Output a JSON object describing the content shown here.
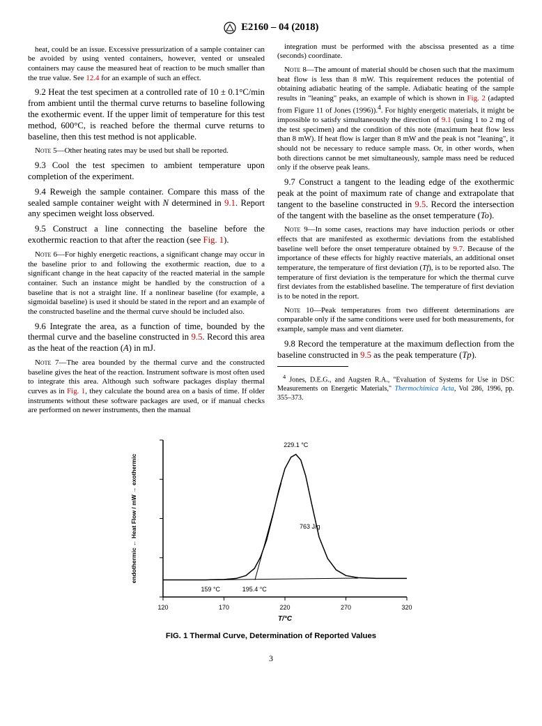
{
  "header": {
    "standard_id": "E2160 – 04 (2018)"
  },
  "col1": {
    "p1": "heat, could be an issue. Excessive pressurization of a sample container can be avoided by using vented containers, however, vented or unsealed containers may cause the measured heat of reaction to be much smaller than the true value. See ",
    "p1_ref": "12.4",
    "p1_end": " for an example of such an effect.",
    "p2_label": "9.2",
    "p2": " Heat the test specimen at a controlled rate of 10 ± 0.1°C/min from ambient until the thermal curve returns to baseline following the exothermic event. If the upper limit of temperature for this test method, 600°C, is reached before the thermal curve returns to baseline, then this test method is not applicable.",
    "note5_label": "Note 5—",
    "note5": "Other heating rates may be used but shall be reported.",
    "p3_label": "9.3",
    "p3": " Cool the test specimen to ambient temperature upon completion of the experiment.",
    "p4_label": "9.4",
    "p4a": " Reweigh the sample container. Compare this mass of the sealed sample container weight with ",
    "p4_N": "N",
    "p4b": " determined in ",
    "p4_ref": "9.1",
    "p4c": ". Report any specimen weight loss observed.",
    "p5_label": "9.5",
    "p5a": " Construct a line connecting the baseline before the exothermic reaction to that after the reaction (see ",
    "p5_ref": "Fig. 1",
    "p5b": ").",
    "note6_label": "Note 6—",
    "note6": "For highly energetic reactions, a significant change may occur in the baseline prior to and following the exothermic reaction, due to a significant change in the heat capacity of the reacted material in the sample container. Such an instance might be handled by the construction of a baseline that is not a straight line. If a nonlinear baseline (for example, a sigmoidal baseline) is used it should be stated in the report and an example of the constructed baseline and the thermal curve should be included also.",
    "p6_label": "9.6",
    "p6a": " Integrate the area, as a function of time, bounded by the thermal curve and the baseline constructed in ",
    "p6_ref": "9.5",
    "p6b": ". Record this area as the heat of the reaction (",
    "p6_A": "A",
    "p6c": ") in mJ.",
    "note7_label": "Note 7—",
    "note7a": "The area bounded by the thermal curve and the constructed baseline gives the heat of the reaction. Instrument software is most often used to integrate this area. Although such software packages display thermal curves as in ",
    "note7_ref": "Fig. 1",
    "note7b": ", they calculate the bound area on a basis of time. If older instruments without these software packages are used, or if manual checks are performed on newer instruments, then the manual"
  },
  "col2": {
    "p1": "integration must be performed with the abscissa presented as a time (seconds) coordinate.",
    "note8_label": "Note 8—",
    "note8a": "The amount of material should be chosen such that the maximum heat flow is less than 8 mW. This requirement reduces the potential of obtaining adiabatic heating of the sample. Adiabatic heating of the sample results in \"leaning\" peaks, an example of which is shown in ",
    "note8_ref1": "Fig. 2",
    "note8b": " (adapted from Figure 11 of Jones (1996)).",
    "note8_sup": "4",
    "note8c": ". For highly energetic materials, it might be impossible to satisfy simultaneously the direction of ",
    "note8_ref2": "9.1",
    "note8d": " (using 1 to 2 mg of the test specimen) and the condition of this note (maximum heat flow less than 8 mW). If heat flow is larger than 8 mW and the peak is not \"leaning\", it should not be necessary to reduce sample mass. Or, in other words, when both directions cannot be met simultaneously, sample mass need be reduced only if the observe peak leans.",
    "p7_label": "9.7",
    "p7a": " Construct a tangent to the leading edge of the exothermic peak at the point of maximum rate of change and extrapolate that tangent to the baseline constructed in ",
    "p7_ref": "9.5",
    "p7b": ". Record the intersection of the tangent with the baseline as the onset temperature (",
    "p7_To": "To",
    "p7c": ").",
    "note9_label": "Note 9—",
    "note9a": "In some cases, reactions may have induction periods or other effects that are manifested as exothermic deviations from the established baseline well before the onset temperature obtained by ",
    "note9_ref": "9.7",
    "note9b": ". Because of the importance of these effects for highly reactive materials, an additional onset temperature, the temperature of first deviation (",
    "note9_Tf": "Tf",
    "note9c": "), is to be reported also. The temperature of first deviation is the temperature for which the thermal curve first deviates from the established baseline. The temperature of first deviation is to be noted in the report.",
    "note10_label": "Note 10—",
    "note10": "Peak temperatures from two different determinations are comparable only if the same conditions were used for both measurements, for example, sample mass and vent diameter.",
    "p8_label": "9.8",
    "p8a": " Record the temperature at the maximum deflection from the baseline constructed in ",
    "p8_ref": "9.5",
    "p8b": " as the peak temperature (",
    "p8_Tp": "Tp",
    "p8c": ").",
    "fn_sup": "4",
    "fn_a": " Jones, D.E.G., and Augsten R.A., \"Evaluation of Systems for Use in DSC Measurements on Energetic Materials,\" ",
    "fn_ref": "Thermochimica Acta",
    "fn_b": ", Vol 286, 1996, pp. 355–373."
  },
  "figure": {
    "type": "line",
    "xlabel": "T/°C",
    "ylabel": "endothermic ← Heat Flow / mW → exothermic",
    "xlim": [
      120,
      320
    ],
    "xticks": [
      120,
      170,
      220,
      270,
      320
    ],
    "caption": "FIG. 1 Thermal Curve, Determination of Reported Values",
    "peak_label": "229.1 °C",
    "energy_label": "763 J/g",
    "onset_label": "195.4 °C",
    "first_dev_label": "159 °C",
    "line_color": "#000000",
    "line_width": 1.5,
    "axis_color": "#000000",
    "background_color": "#ffffff",
    "tick_fontsize": 9,
    "label_fontsize": 10,
    "annot_fontsize": 9,
    "curve": [
      [
        120,
        12
      ],
      [
        140,
        12
      ],
      [
        155,
        12
      ],
      [
        159,
        12.1
      ],
      [
        170,
        12.3
      ],
      [
        180,
        13
      ],
      [
        188,
        15
      ],
      [
        195,
        20
      ],
      [
        200,
        28
      ],
      [
        205,
        40
      ],
      [
        210,
        57
      ],
      [
        215,
        75
      ],
      [
        220,
        90
      ],
      [
        225,
        98
      ],
      [
        229,
        100
      ],
      [
        233,
        96
      ],
      [
        237,
        85
      ],
      [
        242,
        65
      ],
      [
        248,
        42
      ],
      [
        255,
        27
      ],
      [
        262,
        19
      ],
      [
        270,
        15
      ],
      [
        280,
        13.5
      ],
      [
        295,
        13
      ],
      [
        320,
        13
      ]
    ],
    "tangent": [
      [
        195.4,
        12
      ],
      [
        217,
        80
      ]
    ],
    "baseline": [
      [
        159,
        12
      ],
      [
        280,
        13.2
      ]
    ]
  },
  "page_number": "3"
}
